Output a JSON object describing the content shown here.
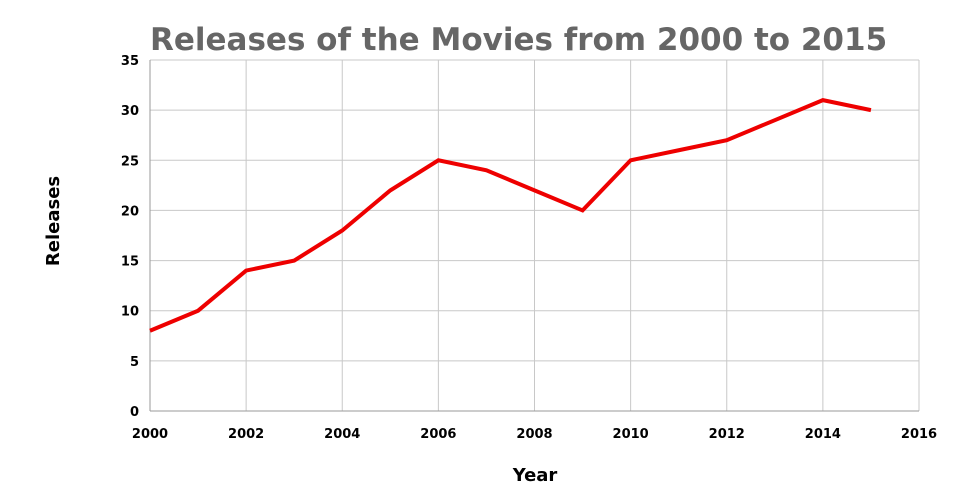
{
  "chart_data": {
    "type": "line",
    "title": "Releases of the Movies from 2000 to 2015",
    "xlabel": "Year",
    "ylabel": "Releases",
    "x": [
      2000,
      2001,
      2002,
      2003,
      2004,
      2005,
      2006,
      2007,
      2008,
      2009,
      2010,
      2011,
      2012,
      2013,
      2014,
      2015
    ],
    "series": [
      {
        "values": [
          8,
          10,
          14,
          15,
          18,
          22,
          25,
          24,
          22,
          20,
          25,
          26,
          27,
          29,
          31,
          30
        ],
        "color": "#ee0000"
      }
    ],
    "xlim": [
      2000,
      2016
    ],
    "ylim": [
      0,
      35
    ],
    "x_ticks": [
      "2000",
      "2002",
      "2004",
      "2006",
      "2008",
      "2010",
      "2012",
      "2014",
      "2016"
    ],
    "y_ticks": [
      "0",
      "5",
      "10",
      "15",
      "20",
      "25",
      "30",
      "35"
    ],
    "grid": true,
    "legend": "none"
  }
}
